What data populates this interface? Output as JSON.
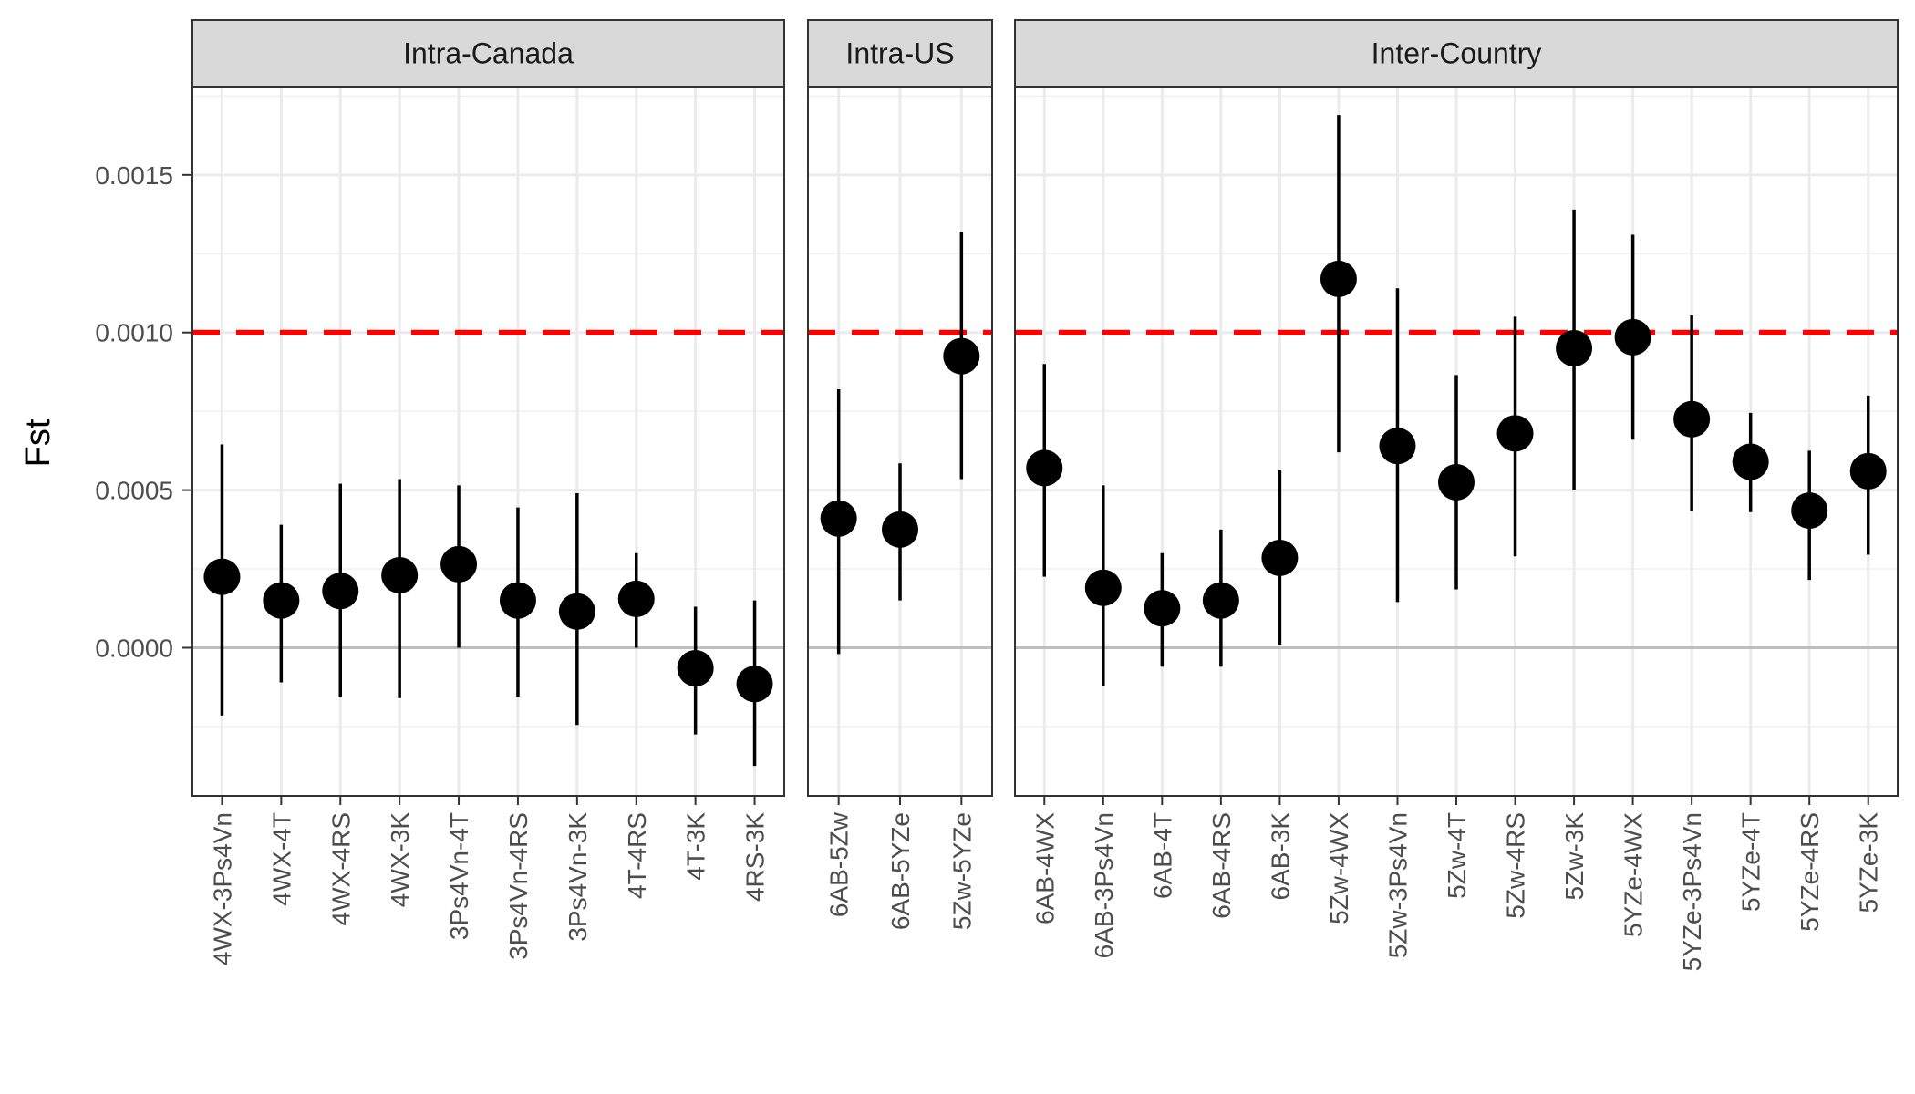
{
  "chart_data": {
    "type": "scatter",
    "ylabel": "Fst",
    "xlabel": "",
    "ylim": [
      -0.00047,
      0.00178
    ],
    "yticks": [
      {
        "value": 0.0,
        "label": "0.0000"
      },
      {
        "value": 0.0005,
        "label": "0.0005"
      },
      {
        "value": 0.001,
        "label": "0.0010"
      },
      {
        "value": 0.0015,
        "label": "0.0015"
      }
    ],
    "minor_gridlines": [
      -0.00025,
      0.00025,
      0.00075,
      0.00125,
      0.00175
    ],
    "reference_lines": [
      {
        "value": 0.0,
        "color": "#bebebe",
        "style": "solid"
      },
      {
        "value": 0.001,
        "color": "#ff0000",
        "style": "dashed"
      }
    ],
    "grid": true,
    "point_color": "#000000",
    "panels": [
      {
        "title": "Intra-Canada",
        "points": [
          {
            "label": "4WX-3Ps4Vn",
            "value": 0.000225,
            "low": -0.000215,
            "high": 0.000645
          },
          {
            "label": "4WX-4T",
            "value": 0.00015,
            "low": -0.00011,
            "high": 0.00039
          },
          {
            "label": "4WX-4RS",
            "value": 0.00018,
            "low": -0.000155,
            "high": 0.00052
          },
          {
            "label": "4WX-3K",
            "value": 0.00023,
            "low": -0.00016,
            "high": 0.000535
          },
          {
            "label": "3Ps4Vn-4T",
            "value": 0.000265,
            "low": 0.0,
            "high": 0.000515
          },
          {
            "label": "3Ps4Vn-4RS",
            "value": 0.00015,
            "low": -0.000155,
            "high": 0.000445
          },
          {
            "label": "3Ps4Vn-3K",
            "value": 0.000115,
            "low": -0.000245,
            "high": 0.00049
          },
          {
            "label": "4T-4RS",
            "value": 0.000155,
            "low": 0.0,
            "high": 0.0003
          },
          {
            "label": "4T-3K",
            "value": -6.5e-05,
            "low": -0.000275,
            "high": 0.00013
          },
          {
            "label": "4RS-3K",
            "value": -0.000115,
            "low": -0.000375,
            "high": 0.00015
          }
        ]
      },
      {
        "title": "Intra-US",
        "points": [
          {
            "label": "6AB-5Zw",
            "value": 0.00041,
            "low": -2e-05,
            "high": 0.00082
          },
          {
            "label": "6AB-5YZe",
            "value": 0.000375,
            "low": 0.00015,
            "high": 0.000585
          },
          {
            "label": "5Zw-5YZe",
            "value": 0.000925,
            "low": 0.000535,
            "high": 0.00132
          }
        ]
      },
      {
        "title": "Inter-Country",
        "points": [
          {
            "label": "6AB-4WX",
            "value": 0.00057,
            "low": 0.000225,
            "high": 0.0009
          },
          {
            "label": "6AB-3Ps4Vn",
            "value": 0.00019,
            "low": -0.00012,
            "high": 0.000515
          },
          {
            "label": "6AB-4T",
            "value": 0.000125,
            "low": -6e-05,
            "high": 0.0003
          },
          {
            "label": "6AB-4RS",
            "value": 0.00015,
            "low": -6e-05,
            "high": 0.000375
          },
          {
            "label": "6AB-3K",
            "value": 0.000285,
            "low": 1e-05,
            "high": 0.000565
          },
          {
            "label": "5Zw-4WX",
            "value": 0.00117,
            "low": 0.00062,
            "high": 0.00169
          },
          {
            "label": "5Zw-3Ps4Vn",
            "value": 0.00064,
            "low": 0.000145,
            "high": 0.00114
          },
          {
            "label": "5Zw-4T",
            "value": 0.000525,
            "low": 0.000185,
            "high": 0.000865
          },
          {
            "label": "5Zw-4RS",
            "value": 0.00068,
            "low": 0.00029,
            "high": 0.00105
          },
          {
            "label": "5Zw-3K",
            "value": 0.00095,
            "low": 0.0005,
            "high": 0.00139
          },
          {
            "label": "5YZe-4WX",
            "value": 0.000985,
            "low": 0.00066,
            "high": 0.00131
          },
          {
            "label": "5YZe-3Ps4Vn",
            "value": 0.000725,
            "low": 0.000435,
            "high": 0.001055
          },
          {
            "label": "5YZe-4T",
            "value": 0.00059,
            "low": 0.00043,
            "high": 0.000745
          },
          {
            "label": "5YZe-4RS",
            "value": 0.000435,
            "low": 0.000215,
            "high": 0.000625
          },
          {
            "label": "5YZe-3K",
            "value": 0.00056,
            "low": 0.000295,
            "high": 0.0008
          }
        ]
      }
    ]
  }
}
